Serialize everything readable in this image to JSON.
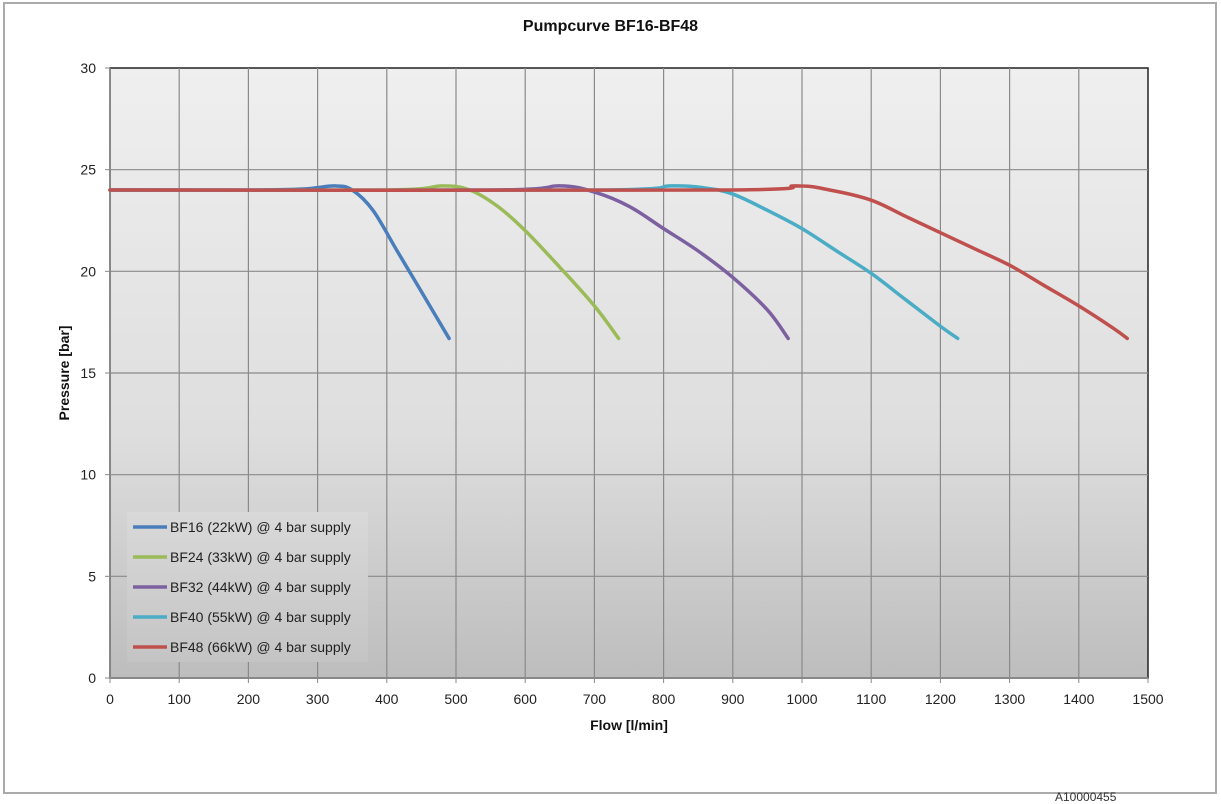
{
  "chart_data": {
    "type": "line",
    "title": "Pumpcurve BF16-BF48",
    "xlabel": "Flow [l/min]",
    "ylabel": "Pressure [bar]",
    "xlim": [
      0,
      1500
    ],
    "ylim": [
      0,
      30
    ],
    "xticks": [
      0,
      100,
      200,
      300,
      400,
      500,
      600,
      700,
      800,
      900,
      1000,
      1100,
      1200,
      1300,
      1400,
      1500
    ],
    "yticks": [
      0,
      5,
      10,
      15,
      20,
      25,
      30
    ],
    "grid": true,
    "legend_position": "lower-left inside",
    "series": [
      {
        "name": "BF16 (22kW) @ 4 bar supply",
        "color": "#4a7ebb",
        "x": [
          0,
          200,
          280,
          325,
          350,
          380,
          415,
          450,
          490
        ],
        "y": [
          24,
          24,
          24.05,
          24.2,
          24.0,
          23.0,
          21.0,
          19.0,
          16.7
        ]
      },
      {
        "name": "BF24 (33kW) @ 4 bar supply",
        "color": "#9bbb59",
        "x": [
          0,
          400,
          480,
          520,
          560,
          600,
          650,
          700,
          735
        ],
        "y": [
          24,
          24,
          24.2,
          24.0,
          23.2,
          22.0,
          20.2,
          18.3,
          16.7
        ]
      },
      {
        "name": "BF32 (44kW) @ 4 bar supply",
        "color": "#7d60a0",
        "x": [
          0,
          550,
          650,
          700,
          750,
          800,
          850,
          900,
          950,
          980
        ],
        "y": [
          24,
          24,
          24.2,
          23.9,
          23.2,
          22.1,
          21.0,
          19.7,
          18.1,
          16.7
        ]
      },
      {
        "name": "BF40 (55kW) @ 4 bar supply",
        "color": "#4bacc6",
        "x": [
          0,
          700,
          810,
          860,
          900,
          950,
          1000,
          1050,
          1100,
          1150,
          1200,
          1225
        ],
        "y": [
          24,
          24,
          24.2,
          24.1,
          23.8,
          23.0,
          22.1,
          21.0,
          19.9,
          18.6,
          17.3,
          16.7
        ]
      },
      {
        "name": "BF48 (66kW) @ 4 bar supply",
        "color": "#c0504d",
        "x": [
          0,
          880,
          990,
          1040,
          1100,
          1150,
          1200,
          1250,
          1300,
          1350,
          1400,
          1450,
          1470
        ],
        "y": [
          24,
          24,
          24.2,
          24.0,
          23.5,
          22.7,
          21.9,
          21.1,
          20.3,
          19.3,
          18.3,
          17.2,
          16.7
        ]
      }
    ]
  },
  "footer": {
    "partial_text": "A10000455"
  }
}
